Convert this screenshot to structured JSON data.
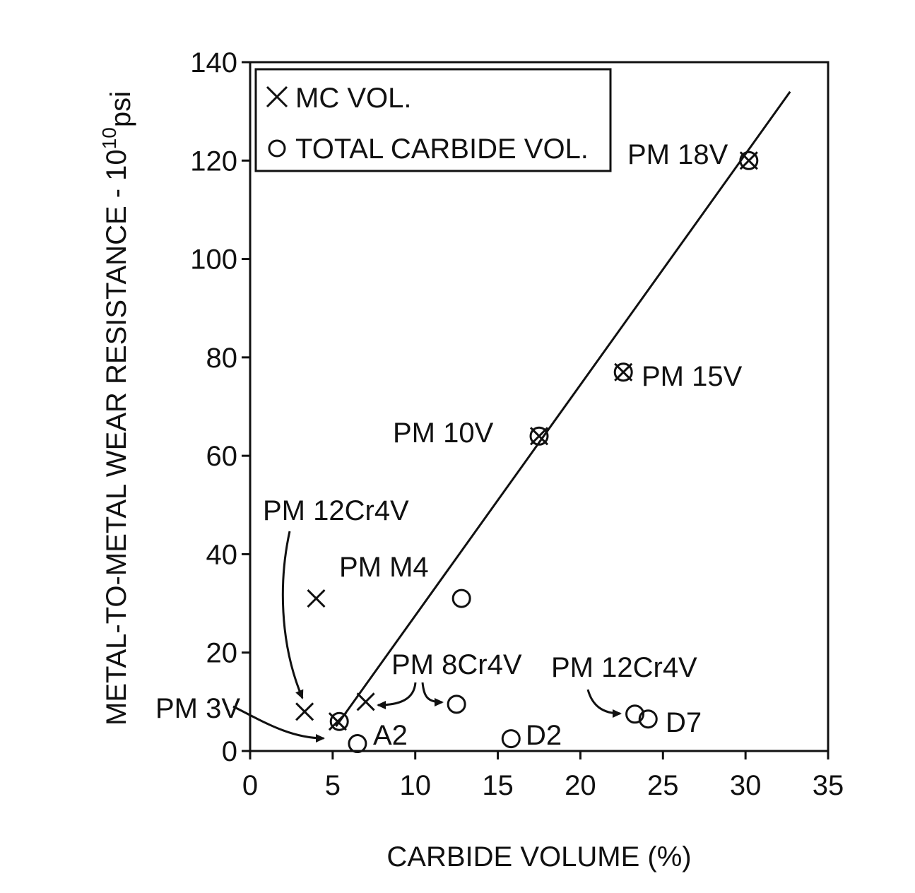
{
  "chart_data": {
    "type": "scatter",
    "title": "",
    "xlabel": "CARBIDE VOLUME (%)",
    "ylabel": "METAL-TO-METAL WEAR RESISTANCE - 10",
    "ylabel_sup": "10",
    "ylabel_sub": "psi",
    "xlim": [
      0,
      35
    ],
    "ylim": [
      0,
      140
    ],
    "xticks": [
      0,
      5,
      10,
      15,
      20,
      25,
      30,
      35
    ],
    "yticks": [
      0,
      20,
      40,
      60,
      80,
      100,
      120,
      140
    ],
    "grid": false,
    "legend_position": "top-left",
    "legend": [
      {
        "marker": "x",
        "label": "MC VOL."
      },
      {
        "marker": "o",
        "label": "TOTAL CARBIDE VOL."
      }
    ],
    "series": [
      {
        "name": "MC VOL.",
        "marker": "x",
        "points": [
          {
            "x": 3.3,
            "y": 8
          },
          {
            "x": 4.0,
            "y": 31
          },
          {
            "x": 5.3,
            "y": 6
          },
          {
            "x": 7.0,
            "y": 10
          },
          {
            "x": 17.5,
            "y": 64
          },
          {
            "x": 22.6,
            "y": 77
          },
          {
            "x": 30.2,
            "y": 120
          }
        ]
      },
      {
        "name": "TOTAL CARBIDE VOL.",
        "marker": "o",
        "points": [
          {
            "x": 5.4,
            "y": 6
          },
          {
            "x": 6.5,
            "y": 1.5
          },
          {
            "x": 12.5,
            "y": 9.5
          },
          {
            "x": 12.8,
            "y": 31
          },
          {
            "x": 15.8,
            "y": 2.5
          },
          {
            "x": 17.5,
            "y": 64
          },
          {
            "x": 22.6,
            "y": 77
          },
          {
            "x": 23.3,
            "y": 7.5
          },
          {
            "x": 24.1,
            "y": 6.5
          },
          {
            "x": 30.2,
            "y": 120
          }
        ]
      }
    ],
    "trend_line": {
      "x": [
        5.2,
        32.7
      ],
      "y": [
        5,
        134
      ]
    },
    "annotations": [
      {
        "text": "PM 18V",
        "x": 30.2,
        "y": 120
      },
      {
        "text": "PM 15V",
        "x": 22.6,
        "y": 77
      },
      {
        "text": "PM 10V",
        "x": 17.5,
        "y": 64
      },
      {
        "text": "PM 12Cr4V",
        "x": 3.3,
        "y": 8
      },
      {
        "text": "PM M4",
        "x": 12.8,
        "y": 31
      },
      {
        "text": "PM 8Cr4V",
        "x": 7.0,
        "y": 10
      },
      {
        "text": "PM 12Cr4V",
        "x": 23.3,
        "y": 7.5
      },
      {
        "text": "PM 3V",
        "x": 5.3,
        "y": 6
      },
      {
        "text": "A2",
        "x": 6.5,
        "y": 1.5
      },
      {
        "text": "D2",
        "x": 15.8,
        "y": 2.5
      },
      {
        "text": "D7",
        "x": 24.1,
        "y": 6.5
      }
    ]
  }
}
